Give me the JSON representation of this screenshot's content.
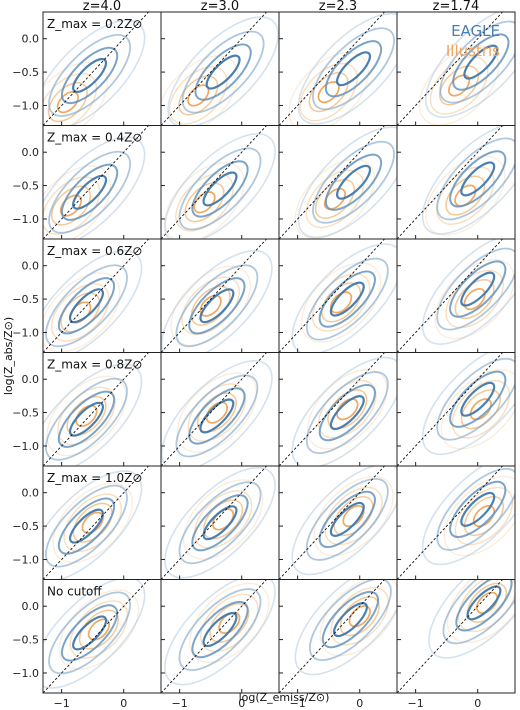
{
  "chart_data": {
    "type": "contour-grid",
    "columns": [
      "z=4.0",
      "z=3.0",
      "z=2.3",
      "z=1.74"
    ],
    "row_labels": [
      "Z_max = 0.2Z⊙",
      "Z_max = 0.4Z⊙",
      "Z_max = 0.6Z⊙",
      "Z_max = 0.8Z⊙",
      "Z_max = 1.0Z⊙",
      "No cutoff"
    ],
    "xlabel": "log(Z_emiss/Z⊙)",
    "ylabel": "log(Z_abs/Z⊙)",
    "xlim": [
      -1.3,
      0.6
    ],
    "ylim": [
      -1.3,
      0.4
    ],
    "xticks": [
      -1,
      0
    ],
    "xtick_labels": [
      "−1",
      "0"
    ],
    "yticks": [
      0.0,
      -0.5,
      -1.0
    ],
    "ytick_labels": [
      "0.0",
      "−0.5",
      "−1.0"
    ],
    "one_to_one_line": true,
    "legend": {
      "placement": "top-right of first row, last column",
      "entries": [
        "EAGLE",
        "Illustris"
      ]
    },
    "series": [
      {
        "name": "EAGLE",
        "color": "#4a7fb0",
        "centers_by_row": [
          [
            [
              -0.55,
              -0.55
            ],
            [
              -0.3,
              -0.5
            ],
            [
              -0.1,
              -0.45
            ],
            [
              0.05,
              -0.35
            ]
          ],
          [
            [
              -0.55,
              -0.6
            ],
            [
              -0.35,
              -0.55
            ],
            [
              -0.1,
              -0.45
            ],
            [
              0.0,
              -0.4
            ]
          ],
          [
            [
              -0.6,
              -0.6
            ],
            [
              -0.4,
              -0.6
            ],
            [
              -0.2,
              -0.5
            ],
            [
              0.0,
              -0.35
            ]
          ],
          [
            [
              -0.6,
              -0.6
            ],
            [
              -0.4,
              -0.55
            ],
            [
              -0.2,
              -0.5
            ],
            [
              0.0,
              -0.3
            ]
          ],
          [
            [
              -0.6,
              -0.5
            ],
            [
              -0.35,
              -0.45
            ],
            [
              -0.2,
              -0.4
            ],
            [
              0.0,
              -0.25
            ]
          ],
          [
            [
              -0.55,
              -0.4
            ],
            [
              -0.35,
              -0.35
            ],
            [
              -0.15,
              -0.2
            ],
            [
              0.1,
              0.05
            ]
          ]
        ]
      },
      {
        "name": "Illustris",
        "color": "#f0a55a",
        "centers_by_row": [
          [
            [
              -0.9,
              -0.95
            ],
            [
              -0.7,
              -0.85
            ],
            [
              -0.5,
              -0.8
            ],
            [
              -0.3,
              -0.7
            ]
          ],
          [
            [
              -0.85,
              -0.8
            ],
            [
              -0.6,
              -0.75
            ],
            [
              -0.4,
              -0.7
            ],
            [
              -0.2,
              -0.65
            ]
          ],
          [
            [
              -0.7,
              -0.7
            ],
            [
              -0.5,
              -0.6
            ],
            [
              -0.3,
              -0.55
            ],
            [
              -0.05,
              -0.5
            ]
          ],
          [
            [
              -0.6,
              -0.55
            ],
            [
              -0.4,
              -0.5
            ],
            [
              -0.2,
              -0.45
            ],
            [
              0.05,
              -0.45
            ]
          ],
          [
            [
              -0.5,
              -0.45
            ],
            [
              -0.3,
              -0.4
            ],
            [
              -0.1,
              -0.35
            ],
            [
              0.1,
              -0.35
            ]
          ],
          [
            [
              -0.4,
              -0.35
            ],
            [
              -0.2,
              -0.25
            ],
            [
              0.0,
              -0.15
            ],
            [
              0.15,
              0.05
            ]
          ]
        ]
      }
    ]
  }
}
